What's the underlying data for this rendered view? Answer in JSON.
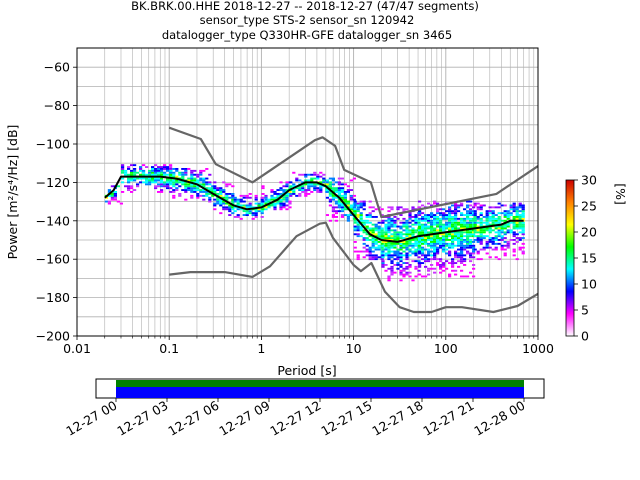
{
  "chart_data": {
    "type": "heatmap",
    "title_lines": [
      "BK.BRK.00.HHE   2018-12-27 -- 2018-12-27  (47/47 segments)",
      "sensor_type STS-2 sensor_sn 120942",
      "datalogger_type Q330HR-GFE datalogger_sn 3465"
    ],
    "xlabel": "Period [s]",
    "ylabel": "Power [m²/s⁴/Hz] [dB]",
    "x_scale": "log",
    "xlim": [
      0.01,
      1000
    ],
    "ylim": [
      -200,
      -50
    ],
    "x_tick_labels": [
      "0.01",
      "0.1",
      "1",
      "10",
      "100",
      "1000"
    ],
    "y_tick_labels": [
      "−200",
      "−180",
      "−160",
      "−140",
      "−120",
      "−100",
      "−80",
      "−60"
    ],
    "grid": true,
    "colorbar": {
      "label": "[%]",
      "range": [
        0,
        30
      ],
      "tick_labels": [
        "0",
        "5",
        "10",
        "15",
        "20",
        "25",
        "30"
      ],
      "colors": [
        "#ffffff",
        "#ff00ff",
        "#0000ff",
        "#00ffff",
        "#00ff00",
        "#ffff00",
        "#ff8000",
        "#cc0000"
      ]
    },
    "series": [
      {
        "role": "mean",
        "color": "#000000",
        "points": [
          [
            0.02,
            -128
          ],
          [
            0.025,
            -124
          ],
          [
            0.03,
            -117
          ],
          [
            0.05,
            -117
          ],
          [
            0.08,
            -117
          ],
          [
            0.12,
            -118
          ],
          [
            0.2,
            -121
          ],
          [
            0.3,
            -126
          ],
          [
            0.5,
            -132
          ],
          [
            0.7,
            -134
          ],
          [
            1.0,
            -133
          ],
          [
            1.5,
            -129
          ],
          [
            2,
            -124
          ],
          [
            3,
            -120
          ],
          [
            4,
            -120
          ],
          [
            5,
            -122
          ],
          [
            7,
            -128
          ],
          [
            10,
            -137
          ],
          [
            15,
            -147
          ],
          [
            20,
            -150
          ],
          [
            30,
            -151
          ],
          [
            50,
            -148
          ],
          [
            100,
            -146
          ],
          [
            200,
            -144
          ],
          [
            400,
            -142
          ],
          [
            500,
            -140
          ],
          [
            700,
            -140
          ]
        ]
      },
      {
        "role": "high-noise-model",
        "color": "#666666",
        "points": [
          [
            0.1,
            -91.5
          ],
          [
            0.22,
            -97.4
          ],
          [
            0.32,
            -110.5
          ],
          [
            0.8,
            -120
          ],
          [
            3.8,
            -98
          ],
          [
            4.6,
            -96.5
          ],
          [
            6.3,
            -101
          ],
          [
            7.9,
            -113.5
          ],
          [
            15.4,
            -120
          ],
          [
            20,
            -138
          ],
          [
            354,
            -126
          ],
          [
            1000,
            -111.5
          ]
        ]
      },
      {
        "role": "low-noise-model",
        "color": "#666666",
        "points": [
          [
            0.1,
            -168
          ],
          [
            0.17,
            -166.7
          ],
          [
            0.4,
            -166.7
          ],
          [
            0.8,
            -169.2
          ],
          [
            1.24,
            -163.7
          ],
          [
            2.4,
            -148
          ],
          [
            4.3,
            -141.5
          ],
          [
            5,
            -141
          ],
          [
            6,
            -149
          ],
          [
            10,
            -163
          ],
          [
            12,
            -166.2
          ],
          [
            15.6,
            -162
          ],
          [
            21.9,
            -177
          ],
          [
            31.6,
            -185
          ],
          [
            45,
            -187.5
          ],
          [
            70,
            -187.5
          ],
          [
            100,
            -185
          ],
          [
            150,
            -185
          ],
          [
            328,
            -187.5
          ],
          [
            600,
            -184.4
          ],
          [
            1000,
            -178
          ]
        ]
      }
    ],
    "density": [
      {
        "period": [
          0.02,
          0.03
        ],
        "db": [
          -131,
          -122
        ]
      },
      {
        "period": [
          0.03,
          0.1
        ],
        "db": [
          -126,
          -111
        ]
      },
      {
        "period": [
          0.1,
          0.3
        ],
        "db": [
          -130,
          -113
        ]
      },
      {
        "period": [
          0.3,
          0.5
        ],
        "db": [
          -137,
          -120
        ]
      },
      {
        "period": [
          0.5,
          1.0
        ],
        "db": [
          -139,
          -126
        ]
      },
      {
        "period": [
          1.0,
          2.0
        ],
        "db": [
          -134,
          -120
        ]
      },
      {
        "period": [
          2.0,
          5.0
        ],
        "db": [
          -127,
          -115
        ]
      },
      {
        "period": [
          5.0,
          10.0
        ],
        "db": [
          -140,
          -118
        ]
      },
      {
        "period": [
          10.0,
          20.0
        ],
        "db": [
          -160,
          -130
        ]
      },
      {
        "period": [
          20.0,
          50.0
        ],
        "db": [
          -171,
          -133
        ]
      },
      {
        "period": [
          50.0,
          200.0
        ],
        "db": [
          -169,
          -130
        ]
      },
      {
        "period": [
          200.0,
          700.0
        ],
        "db": [
          -160,
          -131
        ]
      }
    ],
    "coverage": {
      "x_tick_labels": [
        "12-27 00",
        "12-27 03",
        "12-27 06",
        "12-27 09",
        "12-27 12",
        "12-27 15",
        "12-27 18",
        "12-27 21",
        "12-28 00"
      ],
      "colors": [
        "#008000",
        "#0000ff"
      ]
    }
  }
}
